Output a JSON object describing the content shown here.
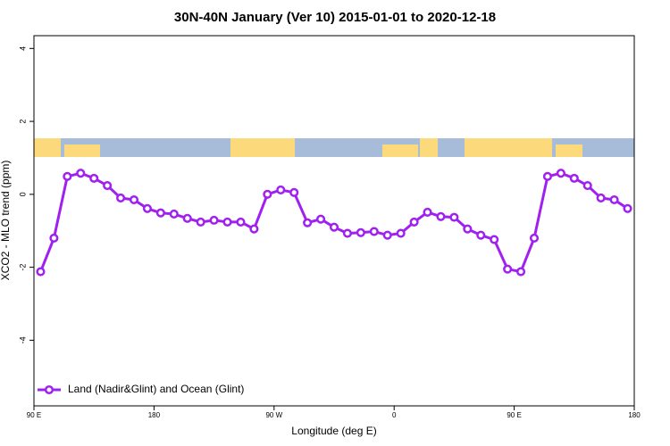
{
  "chart_data": {
    "type": "line",
    "title": "30N-40N January (Ver 10)   2015-01-01 to 2020-12-18",
    "x_label": "Longitude (deg E)",
    "y_label": "XCO2 - MLO trend (ppm)",
    "xlim": [
      90,
      540
    ],
    "xticks": [
      {
        "value": 90,
        "label": "90 E"
      },
      180,
      {
        "value": 270,
        "label": "90 W"
      },
      {
        "value": 360,
        "label": "0"
      },
      {
        "value": 450,
        "label": "90 E"
      },
      {
        "value": 540,
        "label": "180"
      }
    ],
    "ylim": [
      -5.8,
      4.35
    ],
    "yticks": [
      -4,
      -2,
      0,
      2,
      4
    ],
    "legend": "bottom-left",
    "x": [
      95,
      105,
      115,
      125,
      135,
      145,
      155,
      165,
      175,
      185,
      195,
      205,
      215,
      225,
      235,
      245,
      255,
      265,
      275,
      285,
      295,
      305,
      315,
      325,
      335,
      345,
      355,
      365,
      375,
      385,
      395,
      405,
      415,
      425,
      435,
      445,
      455,
      465,
      475,
      485,
      495,
      505,
      515,
      525,
      535
    ],
    "series": [
      {
        "name": "Land (Nadir&Glint) and Ocean (Glint)",
        "color": "#a020f0",
        "values": [
          -2.12,
          -1.2,
          0.49,
          0.58,
          0.44,
          0.24,
          -0.1,
          -0.15,
          -0.39,
          -0.51,
          -0.54,
          -0.66,
          -0.76,
          -0.71,
          -0.76,
          -0.76,
          -0.95,
          0.0,
          0.12,
          0.05,
          -0.78,
          -0.68,
          -0.9,
          -1.07,
          -1.05,
          -1.02,
          -1.12,
          -1.07,
          -0.76,
          -0.49,
          -0.61,
          -0.63,
          -0.95,
          -1.12,
          -1.24,
          -2.05,
          -2.12,
          -1.2,
          0.49,
          0.58,
          0.44,
          0.24,
          -0.1,
          -0.15,
          -0.39
        ]
      }
    ]
  }
}
